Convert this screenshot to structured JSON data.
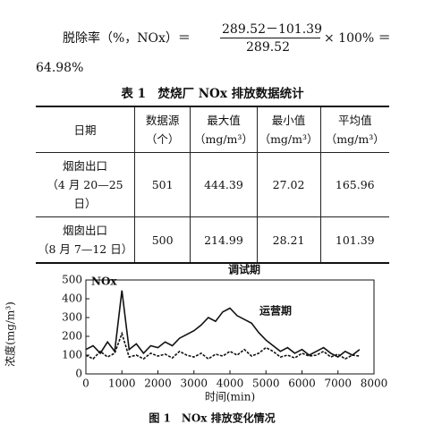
{
  "formula": {
    "lhs": "脱除率（%，NOx）＝",
    "numerator": "289.52－101.39",
    "denominator": "289.52",
    "rhs": "× 100% ＝",
    "result": "64.98%"
  },
  "table": {
    "title": "表 1　焚烧厂 NOx 排放数据统计",
    "header": [
      [
        "日期"
      ],
      [
        "数据源",
        "（个）"
      ],
      [
        "最大值",
        "（mg/m³）"
      ],
      [
        "最小值",
        "（mg/m³）"
      ],
      [
        "平均值",
        "（mg/m³）"
      ]
    ],
    "rows": [
      [
        [
          "烟囱出口",
          "（4 月 20—25 日）"
        ],
        501,
        444.39,
        27.02,
        165.96
      ],
      [
        [
          "烟囱出口",
          "（8 月 7—12 日）"
        ],
        500,
        214.99,
        28.21,
        101.39
      ]
    ]
  },
  "figure": {
    "caption": "图 1　NOx 排放变化情况",
    "chart_data": {
      "type": "line",
      "x_label": "时间(min)",
      "y_label": "浓度(mg/m³)",
      "annotations": [
        "NOx",
        "调试期",
        "运营期"
      ],
      "x": [
        0,
        200,
        400,
        600,
        800,
        1000,
        1200,
        1400,
        1600,
        1800,
        2000,
        2200,
        2400,
        2600,
        2800,
        3000,
        3200,
        3400,
        3600,
        3800,
        4000,
        4200,
        4400,
        4600,
        4800,
        5000,
        5200,
        5400,
        5600,
        5800,
        6000,
        6200,
        6400,
        6600,
        6800,
        7000,
        7200,
        7400,
        7600
      ],
      "series": [
        {
          "name": "调试期",
          "color": "#111111",
          "values": [
            130,
            150,
            110,
            170,
            120,
            444,
            130,
            160,
            110,
            150,
            140,
            170,
            150,
            190,
            210,
            230,
            260,
            300,
            280,
            330,
            350,
            310,
            290,
            270,
            220,
            180,
            150,
            120,
            140,
            110,
            130,
            100,
            120,
            140,
            110,
            90,
            120,
            100,
            130
          ]
        },
        {
          "name": "运营期",
          "color": "#111111",
          "values": [
            100,
            80,
            120,
            90,
            110,
            215,
            90,
            100,
            80,
            110,
            95,
            105,
            85,
            120,
            100,
            90,
            110,
            80,
            105,
            95,
            120,
            100,
            130,
            95,
            110,
            140,
            120,
            90,
            100,
            85,
            110,
            95,
            100,
            120,
            90,
            105,
            80,
            100,
            95
          ]
        }
      ],
      "xlim": [
        0,
        8000
      ],
      "xticks": [
        0,
        1000,
        2000,
        3000,
        4000,
        5000,
        6000,
        7000,
        8000
      ],
      "ylim": [
        0,
        500
      ],
      "yticks": [
        0,
        100,
        200,
        300,
        400,
        500
      ]
    }
  }
}
